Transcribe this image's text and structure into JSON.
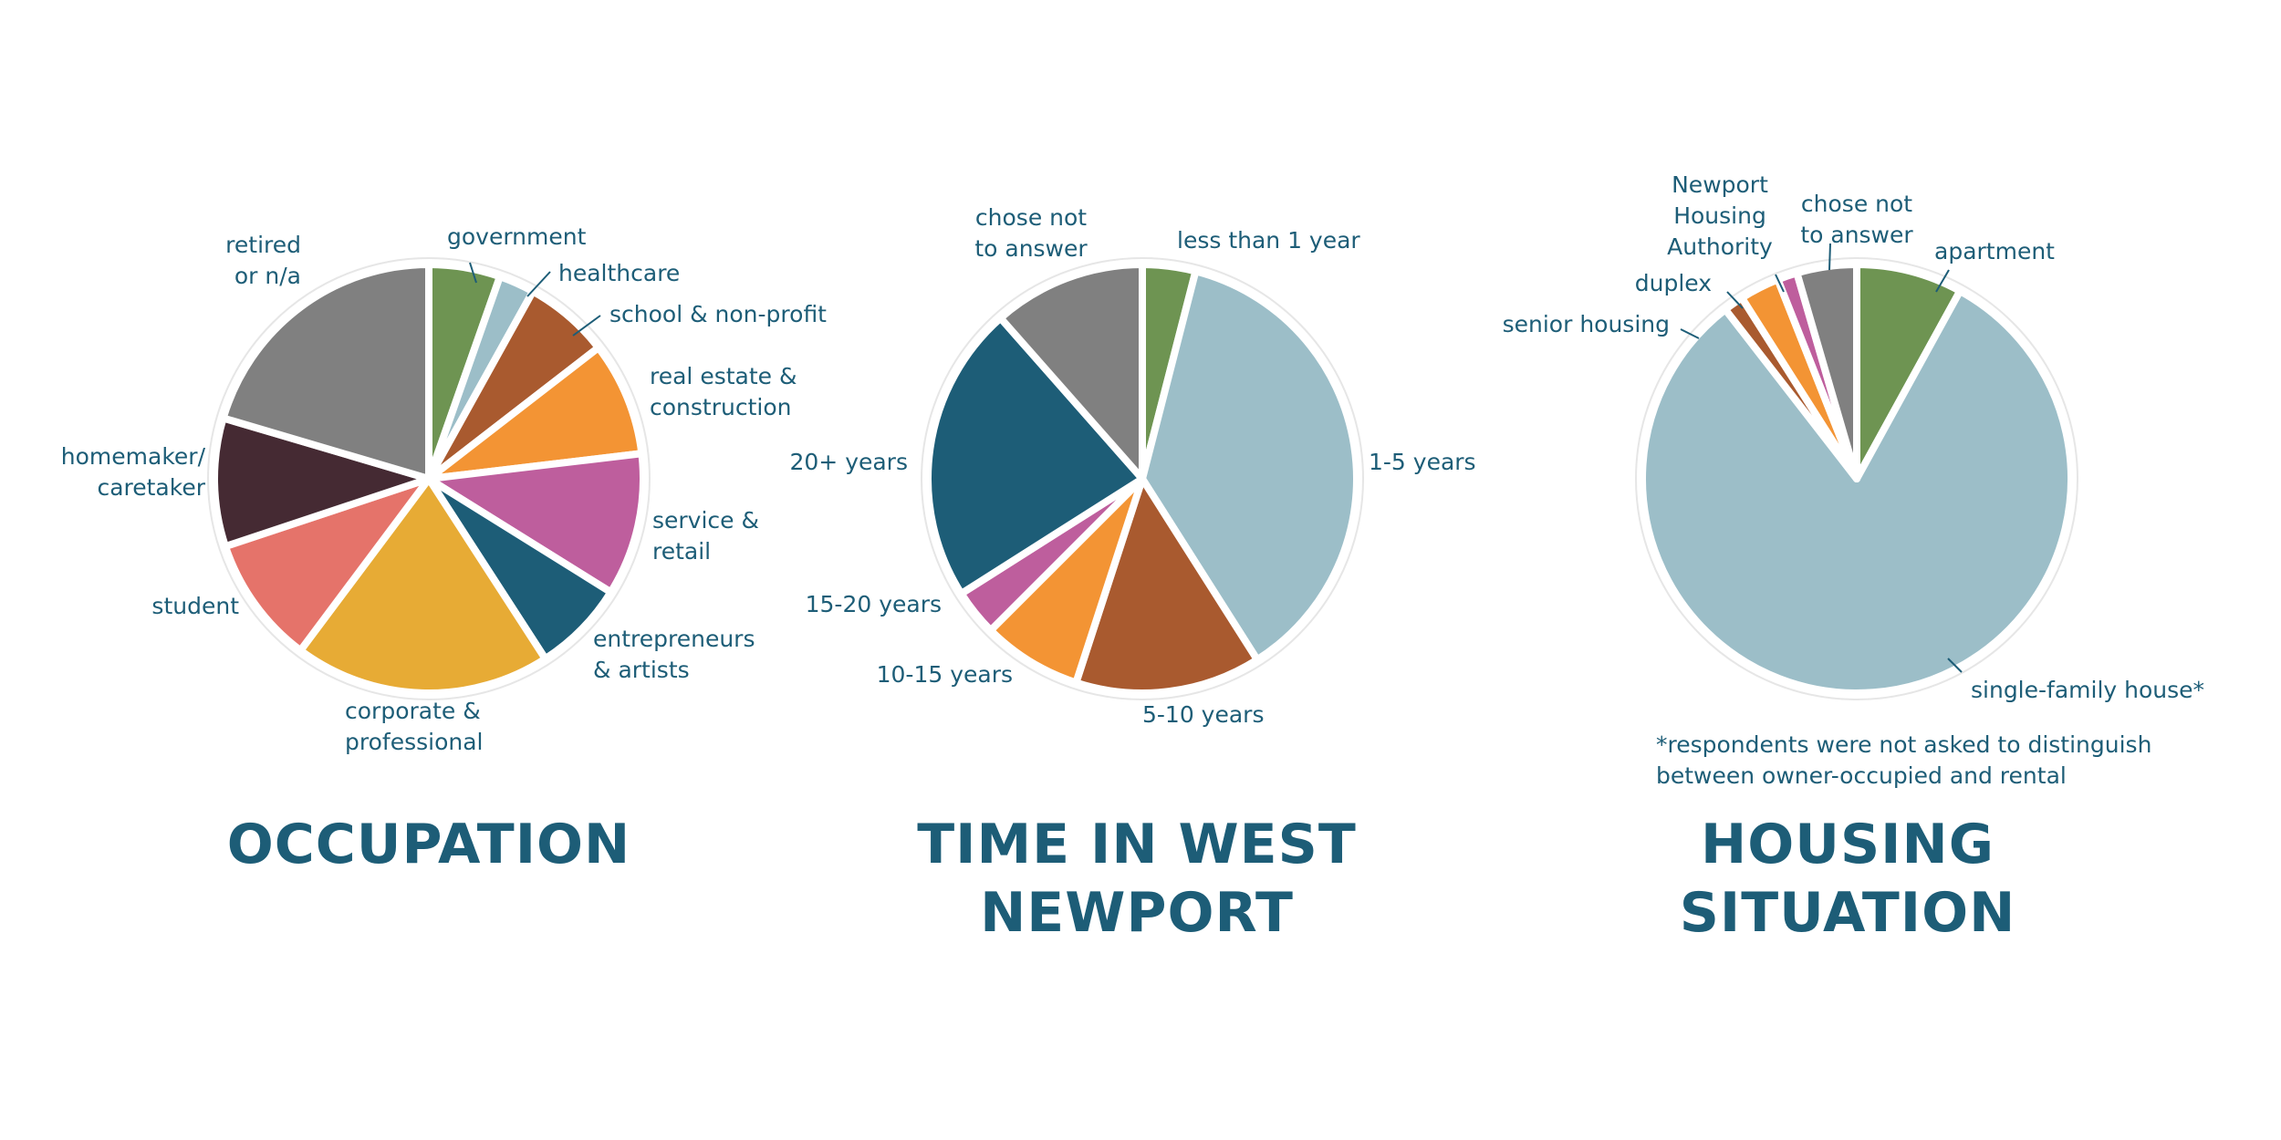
{
  "colors": {
    "text": "#1d5d77",
    "green": "#6e9452",
    "lightblue": "#9cbec8",
    "rust": "#a95a2f",
    "orange": "#f39434",
    "magenta": "#be5e9d",
    "teal": "#1d5d77",
    "yellow": "#e7ab35",
    "salmon": "#e5736a",
    "plum": "#452a33",
    "gray": "#808080"
  },
  "chart_data": [
    {
      "type": "pie",
      "title": "OCCUPATION",
      "categories": [
        "government",
        "healthcare",
        "school & non-profit",
        "real estate &\nconstruction",
        "service &\nretail",
        "entrepreneurs\n& artists",
        "corporate &\nprofessional",
        "student",
        "homemaker/\ncaretaker",
        "retired\nor n/a"
      ],
      "values": [
        5,
        2.5,
        6,
        8,
        10,
        6.5,
        18,
        9,
        9,
        19
      ],
      "colors": [
        "#6e9452",
        "#9cbec8",
        "#a95a2f",
        "#f39434",
        "#be5e9d",
        "#1d5d77",
        "#e7ab35",
        "#e5736a",
        "#452a33",
        "#808080"
      ]
    },
    {
      "type": "pie",
      "title": "TIME IN WEST\nNEWPORT",
      "categories": [
        "less than 1 year",
        "1-5 years",
        "5-10 years",
        "10-15 years",
        "15-20 years",
        "20+ years",
        "chose not\nto answer"
      ],
      "values": [
        4,
        37,
        14,
        7.5,
        3.5,
        22.5,
        11.5
      ],
      "colors": [
        "#6e9452",
        "#9cbec8",
        "#a95a2f",
        "#f39434",
        "#be5e9d",
        "#1d5d77",
        "#808080"
      ]
    },
    {
      "type": "pie",
      "title": "HOUSING\nSITUATION",
      "categories": [
        "apartment",
        "single-family house*",
        "senior housing",
        "duplex",
        "Newport\nHousing\nAuthority",
        "chose not\nto answer"
      ],
      "values": [
        8,
        81.5,
        1.5,
        3,
        1.5,
        4.5
      ],
      "colors": [
        "#6e9452",
        "#9cbec8",
        "#a95a2f",
        "#f39434",
        "#be5e9d",
        "#808080"
      ],
      "note": "*respondents were not asked to distinguish\nbetween owner-occupied and rental"
    }
  ]
}
